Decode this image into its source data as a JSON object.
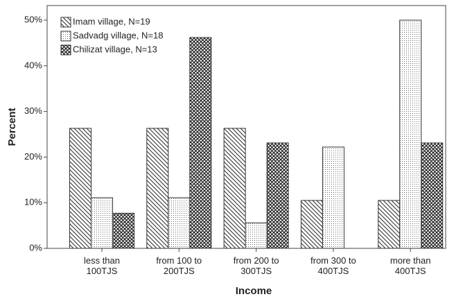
{
  "chart_data": {
    "type": "bar",
    "categories": [
      "less than\n100TJS",
      "from 100 to\n200TJS",
      "from 200 to\n300TJS",
      "from 300 to\n400TJS",
      "more than\n400TJS"
    ],
    "series": [
      {
        "name": "Imam village, N=19",
        "color": "#333333",
        "pattern": "diagonal",
        "values": [
          26.3,
          26.3,
          26.3,
          10.5,
          10.5
        ]
      },
      {
        "name": "Sadvadg village, N=18",
        "color": "#333333",
        "pattern": "dots",
        "values": [
          11.1,
          11.1,
          5.6,
          22.2,
          50
        ]
      },
      {
        "name": "Chilizat village, N=13",
        "color": "#333333",
        "pattern": "crosshatch",
        "values": [
          7.7,
          46.2,
          23.1,
          0,
          23.1
        ]
      }
    ],
    "xlabel": "Income",
    "ylabel": "Percent",
    "ylim": [
      0,
      53.2
    ],
    "yticks": [
      {
        "value": 0,
        "label": "0%"
      },
      {
        "value": 10,
        "label": "10%"
      },
      {
        "value": 20,
        "label": "20%"
      },
      {
        "value": 30,
        "label": "30%"
      },
      {
        "value": 40,
        "label": "40%"
      },
      {
        "value": 50,
        "label": "50%"
      }
    ],
    "legend": "top-left"
  }
}
